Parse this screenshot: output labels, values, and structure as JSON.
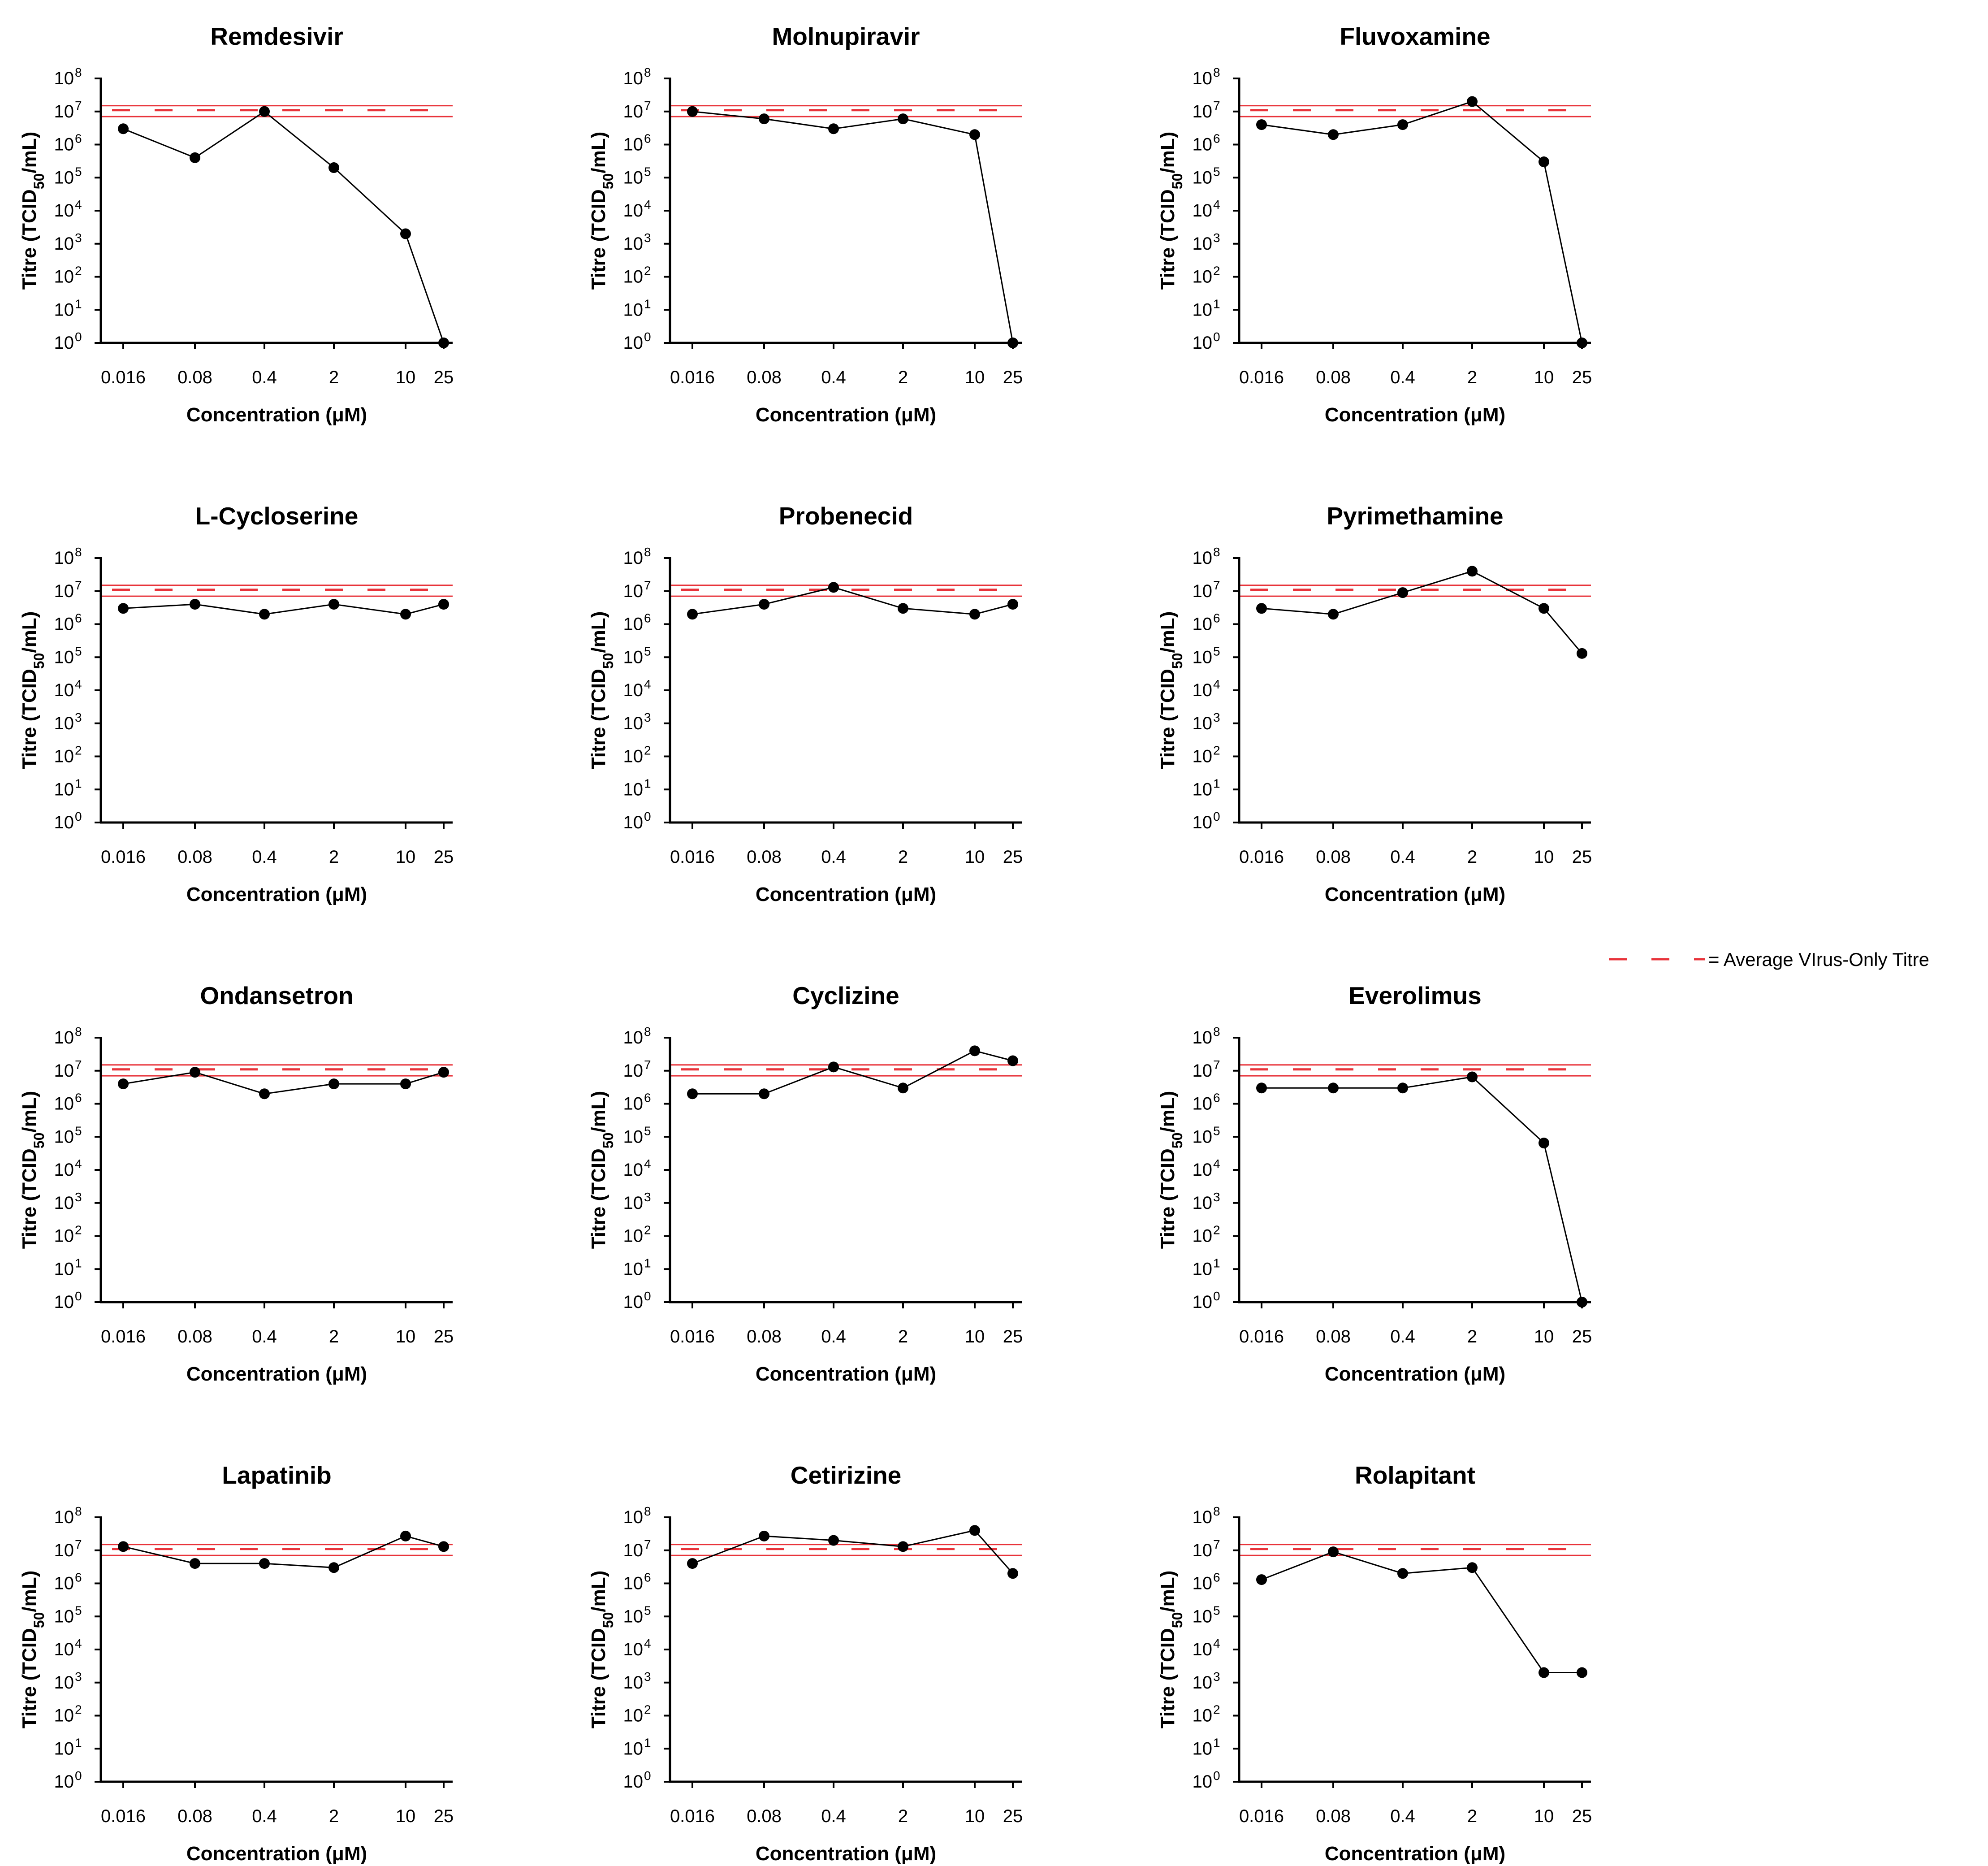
{
  "colors": {
    "reference": "#e8333a",
    "data": "#000000",
    "axis": "#000000"
  },
  "legend": {
    "label": "= Average VIrus-Only Titre"
  },
  "chart_data": [
    {
      "type": "line",
      "title": "Remdesivir",
      "xlabel": "Concentration (μM)",
      "ylabel": "Titre (TCID50/mL)",
      "y_scale": "log10",
      "ylim": [
        1,
        100000000
      ],
      "categories": [
        "0.016",
        "0.08",
        "0.4",
        "2",
        "10",
        "25"
      ],
      "values": [
        3000000,
        400000,
        10000000,
        200000,
        2000,
        1
      ],
      "reference": {
        "mean": 11000000,
        "lower": 7000000,
        "upper": 15000000
      }
    },
    {
      "type": "line",
      "title": "Molnupiravir",
      "xlabel": "Concentration (μM)",
      "ylabel": "Titre (TCID50/mL)",
      "y_scale": "log10",
      "ylim": [
        1,
        100000000
      ],
      "categories": [
        "0.016",
        "0.08",
        "0.4",
        "2",
        "10",
        "25"
      ],
      "values": [
        10000000,
        6000000,
        3000000,
        6000000,
        2000000,
        1
      ],
      "reference": {
        "mean": 11000000,
        "lower": 7000000,
        "upper": 15000000
      }
    },
    {
      "type": "line",
      "title": "Fluvoxamine",
      "xlabel": "Concentration (μM)",
      "ylabel": "Titre (TCID50/mL)",
      "y_scale": "log10",
      "ylim": [
        1,
        100000000
      ],
      "categories": [
        "0.016",
        "0.08",
        "0.4",
        "2",
        "10",
        "25"
      ],
      "values": [
        4000000,
        2000000,
        4000000,
        20000000,
        300000,
        1
      ],
      "reference": {
        "mean": 11000000,
        "lower": 7000000,
        "upper": 15000000
      }
    },
    {
      "type": "line",
      "title": "L-Cycloserine",
      "xlabel": "Concentration (μM)",
      "ylabel": "Titre (TCID50/mL)",
      "y_scale": "log10",
      "ylim": [
        1,
        100000000
      ],
      "categories": [
        "0.016",
        "0.08",
        "0.4",
        "2",
        "10",
        "25"
      ],
      "values": [
        3000000,
        4000000,
        2000000,
        4000000,
        2000000,
        4000000
      ],
      "reference": {
        "mean": 11000000,
        "lower": 7000000,
        "upper": 15000000
      }
    },
    {
      "type": "line",
      "title": "Probenecid",
      "xlabel": "Concentration (μM)",
      "ylabel": "Titre (TCID50/mL)",
      "y_scale": "log10",
      "ylim": [
        1,
        100000000
      ],
      "categories": [
        "0.016",
        "0.08",
        "0.4",
        "2",
        "10",
        "25"
      ],
      "values": [
        2000000,
        4000000,
        13000000,
        3000000,
        2000000,
        4000000
      ],
      "reference": {
        "mean": 11000000,
        "lower": 7000000,
        "upper": 15000000
      }
    },
    {
      "type": "line",
      "title": "Pyrimethamine",
      "xlabel": "Concentration (μM)",
      "ylabel": "Titre (TCID50/mL)",
      "y_scale": "log10",
      "ylim": [
        1,
        100000000
      ],
      "categories": [
        "0.016",
        "0.08",
        "0.4",
        "2",
        "10",
        "25"
      ],
      "values": [
        3000000,
        2000000,
        9000000,
        40000000,
        3000000,
        130000
      ],
      "reference": {
        "mean": 11000000,
        "lower": 7000000,
        "upper": 15000000
      }
    },
    {
      "type": "line",
      "title": "Ondansetron",
      "xlabel": "Concentration (μM)",
      "ylabel": "Titre (TCID50/mL)",
      "y_scale": "log10",
      "ylim": [
        1,
        100000000
      ],
      "categories": [
        "0.016",
        "0.08",
        "0.4",
        "2",
        "10",
        "25"
      ],
      "values": [
        4000000,
        9000000,
        2000000,
        4000000,
        4000000,
        9000000
      ],
      "reference": {
        "mean": 11000000,
        "lower": 7000000,
        "upper": 15000000
      }
    },
    {
      "type": "line",
      "title": "Cyclizine",
      "xlabel": "Concentration (μM)",
      "ylabel": "Titre (TCID50/mL)",
      "y_scale": "log10",
      "ylim": [
        1,
        100000000
      ],
      "categories": [
        "0.016",
        "0.08",
        "0.4",
        "2",
        "10",
        "25"
      ],
      "values": [
        2000000,
        2000000,
        13000000,
        3000000,
        40000000,
        20000000
      ],
      "reference": {
        "mean": 11000000,
        "lower": 7000000,
        "upper": 15000000
      }
    },
    {
      "type": "line",
      "title": "Everolimus",
      "xlabel": "Concentration (μM)",
      "ylabel": "Titre (TCID50/mL)",
      "y_scale": "log10",
      "ylim": [
        1,
        100000000
      ],
      "categories": [
        "0.016",
        "0.08",
        "0.4",
        "2",
        "10",
        "25"
      ],
      "values": [
        3000000,
        3000000,
        3000000,
        6500000,
        65000,
        1
      ],
      "reference": {
        "mean": 11000000,
        "lower": 7000000,
        "upper": 15000000
      }
    },
    {
      "type": "line",
      "title": "Lapatinib",
      "xlabel": "Concentration (μM)",
      "ylabel": "Titre (TCID50/mL)",
      "y_scale": "log10",
      "ylim": [
        1,
        100000000
      ],
      "categories": [
        "0.016",
        "0.08",
        "0.4",
        "2",
        "10",
        "25"
      ],
      "values": [
        13000000,
        4000000,
        4000000,
        3000000,
        27000000,
        13000000
      ],
      "reference": {
        "mean": 11000000,
        "lower": 7000000,
        "upper": 15000000
      }
    },
    {
      "type": "line",
      "title": "Cetirizine",
      "xlabel": "Concentration (μM)",
      "ylabel": "Titre (TCID50/mL)",
      "y_scale": "log10",
      "ylim": [
        1,
        100000000
      ],
      "categories": [
        "0.016",
        "0.08",
        "0.4",
        "2",
        "10",
        "25"
      ],
      "values": [
        4000000,
        27000000,
        20000000,
        13000000,
        40000000,
        2000000
      ],
      "reference": {
        "mean": 11000000,
        "lower": 7000000,
        "upper": 15000000
      }
    },
    {
      "type": "line",
      "title": "Rolapitant",
      "xlabel": "Concentration (μM)",
      "ylabel": "Titre (TCID50/mL)",
      "y_scale": "log10",
      "ylim": [
        1,
        100000000
      ],
      "categories": [
        "0.016",
        "0.08",
        "0.4",
        "2",
        "10",
        "25"
      ],
      "values": [
        1300000,
        9000000,
        2000000,
        3000000,
        2000,
        2000
      ],
      "reference": {
        "mean": 11000000,
        "lower": 7000000,
        "upper": 15000000
      }
    }
  ]
}
